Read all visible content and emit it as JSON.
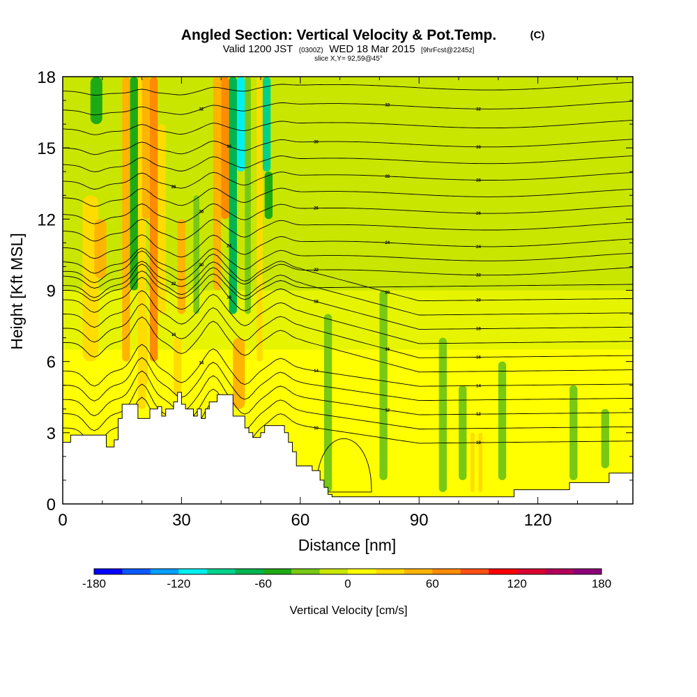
{
  "chart_data": {
    "type": "heatmap",
    "title": "Angled Section: Vertical Velocity & Pot.Temp.",
    "title_unit": "(C)",
    "subtitle_parts": [
      "Valid 1200 JST",
      "(0300Z)",
      "WED 18 Mar 2015",
      "[9hrFcst@2245z]"
    ],
    "slice_note": "slice X,Y= 92,59@45°",
    "xlabel": "Distance [nm]",
    "ylabel": "Height [Kft MSL]",
    "xlim": [
      0,
      144
    ],
    "ylim": [
      0,
      18
    ],
    "x_ticks": [
      0,
      30,
      60,
      90,
      120
    ],
    "y_ticks": [
      0,
      3,
      6,
      9,
      12,
      15,
      18
    ],
    "colorbar": {
      "label": "Vertical Velocity [cm/s]",
      "range": [
        -180,
        180
      ],
      "step": 20,
      "tick_values": [
        -180,
        -120,
        -60,
        0,
        60,
        120,
        180
      ],
      "colors": [
        "#0000ff",
        "#0a5aff",
        "#00a0ff",
        "#00f0f0",
        "#00d28c",
        "#00b450",
        "#1eaa14",
        "#78c814",
        "#c8e600",
        "#ffff00",
        "#ffdc00",
        "#ffb400",
        "#ff8c00",
        "#ff5014",
        "#ff0000",
        "#dc0032",
        "#b4005a",
        "#8c0078"
      ]
    },
    "terrain": [
      [
        0,
        2.6
      ],
      [
        2,
        2.9
      ],
      [
        10,
        2.9
      ],
      [
        11,
        2.4
      ],
      [
        12,
        2.4
      ],
      [
        13,
        2.7
      ],
      [
        14,
        3.6
      ],
      [
        15,
        4.2
      ],
      [
        18,
        4.2
      ],
      [
        19,
        3.6
      ],
      [
        21,
        3.6
      ],
      [
        22,
        4.0
      ],
      [
        24,
        4.1
      ],
      [
        25,
        3.7
      ],
      [
        26,
        4.0
      ],
      [
        28,
        4.3
      ],
      [
        29,
        4.7
      ],
      [
        30,
        4.2
      ],
      [
        31,
        4.0
      ],
      [
        33,
        3.7
      ],
      [
        34,
        4.0
      ],
      [
        35,
        3.6
      ],
      [
        36,
        4.0
      ],
      [
        37,
        4.3
      ],
      [
        39,
        4.6
      ],
      [
        42,
        4.6
      ],
      [
        43,
        3.7
      ],
      [
        45,
        3.7
      ],
      [
        46,
        3.2
      ],
      [
        47,
        3.0
      ],
      [
        48,
        2.8
      ],
      [
        49,
        2.8
      ],
      [
        50,
        3.0
      ],
      [
        51,
        3.3
      ],
      [
        53,
        3.3
      ],
      [
        56,
        3.0
      ],
      [
        57,
        2.6
      ],
      [
        58,
        2.2
      ],
      [
        59,
        1.6
      ],
      [
        62,
        1.6
      ],
      [
        63,
        1.4
      ],
      [
        65,
        1.0
      ],
      [
        66,
        0.7
      ],
      [
        67,
        0.4
      ],
      [
        68,
        0.3
      ],
      [
        113,
        0.3
      ],
      [
        114,
        0.6
      ],
      [
        127,
        0.6
      ],
      [
        128,
        0.9
      ],
      [
        137,
        0.9
      ],
      [
        138,
        1.3
      ],
      [
        144,
        1.3
      ]
    ],
    "color_columns": [
      {
        "x": [
          5,
          9
        ],
        "yr": [
          6,
          13
        ],
        "v": 30
      },
      {
        "x": [
          8,
          11
        ],
        "yr": [
          9.5,
          12
        ],
        "v": 50
      },
      {
        "x": [
          15,
          17
        ],
        "yr": [
          6,
          18
        ],
        "v": 50
      },
      {
        "x": [
          17,
          19
        ],
        "yr": [
          9,
          18
        ],
        "v": -50
      },
      {
        "x": [
          19,
          21
        ],
        "yr": [
          4,
          18
        ],
        "v": 30
      },
      {
        "x": [
          20,
          22
        ],
        "yr": [
          12,
          18
        ],
        "v": 45
      },
      {
        "x": [
          22,
          24
        ],
        "yr": [
          6,
          18
        ],
        "v": 60
      },
      {
        "x": [
          7,
          10
        ],
        "yr": [
          16,
          18
        ],
        "v": -50
      },
      {
        "x": [
          24,
          26
        ],
        "yr": [
          8,
          16
        ],
        "v": 30
      },
      {
        "x": [
          29,
          31
        ],
        "yr": [
          8,
          12
        ],
        "v": 40
      },
      {
        "x": [
          33,
          34.5
        ],
        "yr": [
          8,
          13
        ],
        "v": -40
      },
      {
        "x": [
          38,
          40
        ],
        "yr": [
          9,
          18
        ],
        "v": 45
      },
      {
        "x": [
          40,
          42
        ],
        "yr": [
          12,
          18
        ],
        "v": 60
      },
      {
        "x": [
          42,
          44
        ],
        "yr": [
          8,
          18
        ],
        "v": -70
      },
      {
        "x": [
          44,
          46
        ],
        "yr": [
          14,
          18
        ],
        "v": -120
      },
      {
        "x": [
          46,
          47.5
        ],
        "yr": [
          8,
          18
        ],
        "v": -40
      },
      {
        "x": [
          49,
          50.5
        ],
        "yr": [
          6,
          18
        ],
        "v": 35
      },
      {
        "x": [
          50.5,
          52.5
        ],
        "yr": [
          14,
          18
        ],
        "v": -100
      },
      {
        "x": [
          51,
          53
        ],
        "yr": [
          12,
          14
        ],
        "v": -60
      },
      {
        "x": [
          43,
          46
        ],
        "yr": [
          4,
          7
        ],
        "v": 45
      },
      {
        "x": [
          28,
          30
        ],
        "yr": [
          4.5,
          7
        ],
        "v": 30
      },
      {
        "x": [
          20,
          21.5
        ],
        "yr": [
          5,
          8
        ],
        "v": 35
      },
      {
        "x": [
          66,
          68
        ],
        "yr": [
          0.5,
          8
        ],
        "v": -25
      },
      {
        "x": [
          80,
          82
        ],
        "yr": [
          1,
          9
        ],
        "v": -25
      },
      {
        "x": [
          95,
          97
        ],
        "yr": [
          0.5,
          7
        ],
        "v": -25
      },
      {
        "x": [
          100,
          102
        ],
        "yr": [
          1,
          5
        ],
        "v": -25
      },
      {
        "x": [
          103,
          104
        ],
        "yr": [
          0.5,
          3
        ],
        "v": 35
      },
      {
        "x": [
          105,
          106
        ],
        "yr": [
          0.5,
          3
        ],
        "v": 25
      },
      {
        "x": [
          110,
          112
        ],
        "yr": [
          1,
          6
        ],
        "v": -25
      },
      {
        "x": [
          128,
          130
        ],
        "yr": [
          1,
          5
        ],
        "v": -25
      },
      {
        "x": [
          136,
          138
        ],
        "yr": [
          1.5,
          4
        ],
        "v": -25
      }
    ],
    "theta_levels": [
      {
        "base": 2.4,
        "label": "10"
      },
      {
        "base": 3.0,
        "label": ""
      },
      {
        "base": 3.6,
        "label": "12"
      },
      {
        "base": 4.2,
        "label": ""
      },
      {
        "base": 4.8,
        "label": "14"
      },
      {
        "base": 5.4,
        "label": ""
      },
      {
        "base": 6.0,
        "label": "16"
      },
      {
        "base": 6.6,
        "label": ""
      },
      {
        "base": 7.2,
        "label": "18"
      },
      {
        "base": 7.8,
        "label": ""
      },
      {
        "base": 8.4,
        "label": "20"
      },
      {
        "base": 9.0,
        "label": ""
      },
      {
        "base": 9.6,
        "label": "22"
      },
      {
        "base": 10.2,
        "label": ""
      },
      {
        "base": 10.8,
        "label": "24"
      },
      {
        "base": 11.5,
        "label": ""
      },
      {
        "base": 12.2,
        "label": "26"
      },
      {
        "base": 12.9,
        "label": ""
      },
      {
        "base": 13.6,
        "label": "28"
      },
      {
        "base": 14.3,
        "label": ""
      },
      {
        "base": 15.0,
        "label": "30"
      },
      {
        "base": 15.8,
        "label": ""
      },
      {
        "base": 16.6,
        "label": "32"
      },
      {
        "base": 17.4,
        "label": ""
      }
    ]
  }
}
